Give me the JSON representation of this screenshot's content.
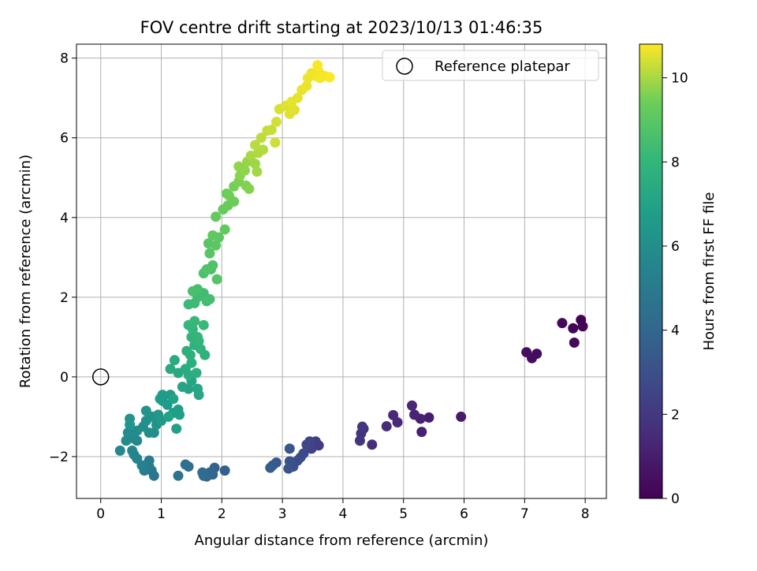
{
  "chart_data": {
    "type": "scatter",
    "title": "FOV centre drift starting at 2023/10/13 01:46:35",
    "xlabel": "Angular distance from reference (arcmin)",
    "ylabel": "Rotation from reference (arcmin)",
    "xlim": [
      -0.4,
      8.35
    ],
    "ylim": [
      -3.05,
      8.35
    ],
    "xticks": [
      "0",
      "1",
      "2",
      "3",
      "4",
      "5",
      "6",
      "7",
      "8"
    ],
    "yticks": [
      "−2",
      "0",
      "2",
      "4",
      "6",
      "8"
    ],
    "grid": true,
    "legend": {
      "position": "upper-right",
      "entries": [
        "Reference platepar"
      ]
    },
    "reference_point": {
      "x": 0,
      "y": 0
    },
    "colorbar": {
      "label": "Hours from first FF file",
      "range": [
        0,
        10.8
      ],
      "ticks": [
        "0",
        "2",
        "4",
        "6",
        "8",
        "10"
      ],
      "colormap": "viridis"
    },
    "points": [
      [
        7.93,
        1.43,
        0.05
      ],
      [
        7.96,
        1.27,
        0.1
      ],
      [
        7.8,
        1.22,
        0.15
      ],
      [
        7.62,
        1.35,
        0.2
      ],
      [
        7.82,
        0.86,
        0.25
      ],
      [
        7.2,
        0.58,
        0.35
      ],
      [
        7.12,
        0.47,
        0.4
      ],
      [
        7.03,
        0.62,
        0.45
      ],
      [
        5.95,
        -1.0,
        0.9
      ],
      [
        5.42,
        -1.02,
        1.0
      ],
      [
        5.3,
        -1.38,
        1.1
      ],
      [
        5.28,
        -1.05,
        1.15
      ],
      [
        5.18,
        -0.95,
        1.2
      ],
      [
        5.14,
        -0.72,
        1.3
      ],
      [
        4.9,
        -1.14,
        1.4
      ],
      [
        4.83,
        -0.96,
        1.45
      ],
      [
        4.72,
        -1.24,
        1.5
      ],
      [
        4.48,
        -1.7,
        1.6
      ],
      [
        4.34,
        -1.3,
        1.7
      ],
      [
        4.3,
        -1.42,
        1.8
      ],
      [
        4.28,
        -1.6,
        1.9
      ],
      [
        4.32,
        -1.25,
        2.0
      ],
      [
        3.6,
        -1.72,
        2.2
      ],
      [
        3.55,
        -1.62,
        2.3
      ],
      [
        3.48,
        -1.8,
        2.4
      ],
      [
        3.45,
        -1.62,
        2.5
      ],
      [
        3.4,
        -1.7,
        2.6
      ],
      [
        3.35,
        -1.92,
        2.7
      ],
      [
        3.3,
        -2.02,
        2.8
      ],
      [
        3.25,
        -2.1,
        2.9
      ],
      [
        3.18,
        -2.25,
        3.0
      ],
      [
        3.12,
        -2.12,
        3.1
      ],
      [
        3.1,
        -2.3,
        3.2
      ],
      [
        3.12,
        -1.8,
        3.3
      ],
      [
        2.9,
        -2.15,
        3.4
      ],
      [
        2.84,
        -2.22,
        3.5
      ],
      [
        2.8,
        -2.28,
        3.6
      ],
      [
        2.05,
        -2.35,
        3.7
      ],
      [
        1.88,
        -2.28,
        3.8
      ],
      [
        1.85,
        -2.45,
        3.9
      ],
      [
        1.8,
        -2.4,
        4.0
      ],
      [
        1.75,
        -2.5,
        4.1
      ],
      [
        1.7,
        -2.48,
        4.2
      ],
      [
        1.68,
        -2.4,
        4.3
      ],
      [
        1.45,
        -2.25,
        4.4
      ],
      [
        1.4,
        -2.2,
        4.5
      ],
      [
        1.28,
        -2.48,
        4.6
      ],
      [
        0.88,
        -2.48,
        4.8
      ],
      [
        0.84,
        -2.35,
        4.9
      ],
      [
        0.8,
        -2.25,
        5.0
      ],
      [
        0.8,
        -2.1,
        5.1
      ],
      [
        0.72,
        -2.35,
        5.2
      ],
      [
        0.68,
        -2.22,
        5.3
      ],
      [
        0.6,
        -2.05,
        5.4
      ],
      [
        0.55,
        -1.95,
        5.5
      ],
      [
        0.52,
        -1.85,
        5.55
      ],
      [
        0.32,
        -1.85,
        5.6
      ],
      [
        0.6,
        -1.6,
        5.65
      ],
      [
        0.55,
        -1.55,
        5.7
      ],
      [
        0.48,
        -1.5,
        5.75
      ],
      [
        0.45,
        -1.4,
        5.8
      ],
      [
        0.42,
        -1.6,
        5.85
      ],
      [
        0.6,
        -1.35,
        5.9
      ],
      [
        0.8,
        -1.4,
        5.95
      ],
      [
        0.88,
        -1.4,
        6.0
      ],
      [
        0.7,
        -1.25,
        6.05
      ],
      [
        0.75,
        -1.1,
        6.1
      ],
      [
        0.85,
        -1.0,
        6.15
      ],
      [
        0.92,
        -1.2,
        6.2
      ],
      [
        0.75,
        -0.85,
        6.25
      ],
      [
        0.48,
        -1.05,
        6.3
      ],
      [
        0.48,
        -1.2,
        6.35
      ],
      [
        0.95,
        -0.95,
        6.4
      ],
      [
        1.0,
        -1.1,
        6.45
      ],
      [
        1.02,
        -0.6,
        6.5
      ],
      [
        1.1,
        -0.7,
        6.55
      ],
      [
        1.15,
        -0.45,
        6.6
      ],
      [
        1.02,
        -0.45,
        6.65
      ],
      [
        0.98,
        -0.55,
        6.7
      ],
      [
        1.2,
        -0.9,
        6.75
      ],
      [
        1.28,
        -0.82,
        6.8
      ],
      [
        1.3,
        -0.95,
        6.85
      ],
      [
        1.25,
        -1.3,
        6.9
      ],
      [
        1.12,
        -1.0,
        6.95
      ],
      [
        1.2,
        -0.55,
        7.0
      ],
      [
        1.35,
        -0.25,
        7.05
      ],
      [
        1.45,
        -0.3,
        7.1
      ],
      [
        1.5,
        -0.1,
        7.15
      ],
      [
        1.6,
        -0.3,
        7.2
      ],
      [
        1.62,
        -0.45,
        7.25
      ],
      [
        1.28,
        0.1,
        7.3
      ],
      [
        1.15,
        0.2,
        7.35
      ],
      [
        1.22,
        0.42,
        7.4
      ],
      [
        1.4,
        0.2,
        7.45
      ],
      [
        1.45,
        0.05,
        7.5
      ],
      [
        1.5,
        0.35,
        7.55
      ],
      [
        1.58,
        0.1,
        7.6
      ],
      [
        1.42,
        0.65,
        7.65
      ],
      [
        1.48,
        0.55,
        7.7
      ],
      [
        1.55,
        0.8,
        7.75
      ],
      [
        1.65,
        0.7,
        7.8
      ],
      [
        1.72,
        0.55,
        7.85
      ],
      [
        1.5,
        1.0,
        7.9
      ],
      [
        1.6,
        1.0,
        7.95
      ],
      [
        1.62,
        0.9,
        8.0
      ],
      [
        1.52,
        1.2,
        8.05
      ],
      [
        1.45,
        1.3,
        8.1
      ],
      [
        1.55,
        1.4,
        8.15
      ],
      [
        1.7,
        1.3,
        8.2
      ],
      [
        1.45,
        1.82,
        8.25
      ],
      [
        1.55,
        1.85,
        8.3
      ],
      [
        1.6,
        2.0,
        8.35
      ],
      [
        1.7,
        2.1,
        8.4
      ],
      [
        1.75,
        1.9,
        8.45
      ],
      [
        1.8,
        1.95,
        8.5
      ],
      [
        1.6,
        2.2,
        8.55
      ],
      [
        1.52,
        2.15,
        8.6
      ],
      [
        1.7,
        2.6,
        8.65
      ],
      [
        1.82,
        2.7,
        8.7
      ],
      [
        1.85,
        2.8,
        8.75
      ],
      [
        1.75,
        2.7,
        8.8
      ],
      [
        1.92,
        2.45,
        8.85
      ],
      [
        1.8,
        3.1,
        8.9
      ],
      [
        1.78,
        3.35,
        8.95
      ],
      [
        1.9,
        3.3,
        9.0
      ],
      [
        1.95,
        3.5,
        9.05
      ],
      [
        1.85,
        3.55,
        9.1
      ],
      [
        2.05,
        3.7,
        9.15
      ],
      [
        1.9,
        4.02,
        9.2
      ],
      [
        2.02,
        4.2,
        9.25
      ],
      [
        2.1,
        4.3,
        9.3
      ],
      [
        2.2,
        4.4,
        9.35
      ],
      [
        2.08,
        4.6,
        9.4
      ],
      [
        2.12,
        4.55,
        9.45
      ],
      [
        2.2,
        4.78,
        9.5
      ],
      [
        2.28,
        4.9,
        9.55
      ],
      [
        2.4,
        4.8,
        9.6
      ],
      [
        2.45,
        4.72,
        9.65
      ],
      [
        2.3,
        5.05,
        9.7
      ],
      [
        2.38,
        5.18,
        9.75
      ],
      [
        2.28,
        5.28,
        9.8
      ],
      [
        2.42,
        5.4,
        9.85
      ],
      [
        2.55,
        5.35,
        9.9
      ],
      [
        2.58,
        5.15,
        9.95
      ],
      [
        2.48,
        5.55,
        10.0
      ],
      [
        2.6,
        5.62,
        10.05
      ],
      [
        2.68,
        5.7,
        10.1
      ],
      [
        2.55,
        5.82,
        10.15
      ],
      [
        2.65,
        6.0,
        10.2
      ],
      [
        2.75,
        6.18,
        10.25
      ],
      [
        2.82,
        6.2,
        10.3
      ],
      [
        2.88,
        5.88,
        10.35
      ],
      [
        2.9,
        6.4,
        10.4
      ],
      [
        2.95,
        6.72,
        10.45
      ],
      [
        3.05,
        6.8,
        10.5
      ],
      [
        3.12,
        6.6,
        10.52
      ],
      [
        3.2,
        6.7,
        10.54
      ],
      [
        3.15,
        6.9,
        10.56
      ],
      [
        3.25,
        7.0,
        10.58
      ],
      [
        3.32,
        7.2,
        10.6
      ],
      [
        3.4,
        7.3,
        10.62
      ],
      [
        3.42,
        7.5,
        10.64
      ],
      [
        3.48,
        7.62,
        10.66
      ],
      [
        3.55,
        7.55,
        10.68
      ],
      [
        3.6,
        7.65,
        10.7
      ],
      [
        3.62,
        7.5,
        10.72
      ],
      [
        3.7,
        7.55,
        10.74
      ],
      [
        3.58,
        7.82,
        10.76
      ],
      [
        3.78,
        7.52,
        10.78
      ]
    ]
  }
}
